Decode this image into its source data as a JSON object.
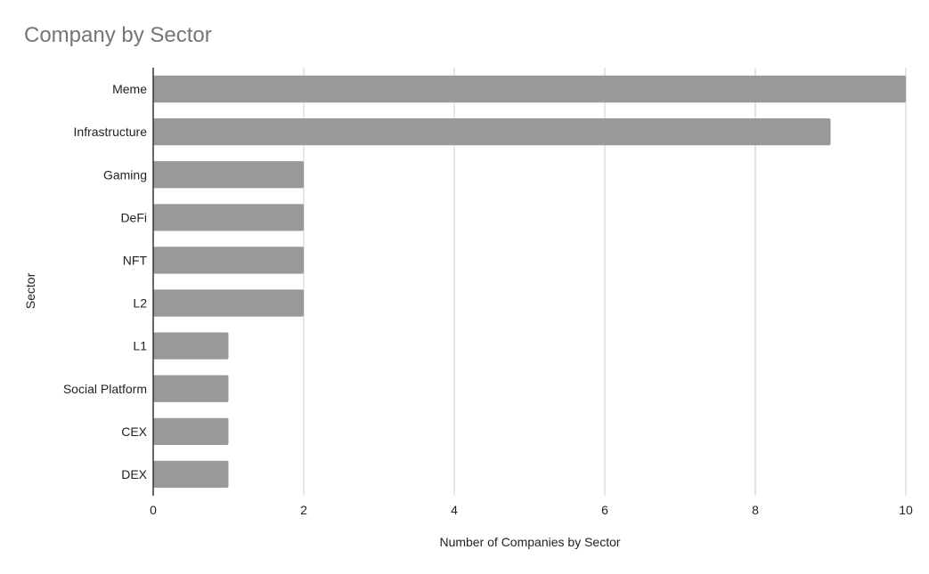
{
  "chart_data": {
    "type": "bar",
    "orientation": "horizontal",
    "title": "Company by Sector",
    "xlabel": "Number of Companies by Sector",
    "ylabel": "Sector",
    "categories": [
      "Meme",
      "Infrastructure",
      "Gaming",
      "DeFi",
      "NFT",
      "L2",
      "L1",
      "Social Platform",
      "CEX",
      "DEX"
    ],
    "values": [
      10,
      9,
      2,
      2,
      2,
      2,
      1,
      1,
      1,
      1
    ],
    "xlim": [
      0,
      10
    ],
    "xticks": [
      0,
      2,
      4,
      6,
      8,
      10
    ],
    "grid": true,
    "legend": "none",
    "colors": {
      "bar": "#999999",
      "grid": "#cccccc",
      "axis": "#333333",
      "title": "#757575",
      "text": "#222222"
    }
  }
}
